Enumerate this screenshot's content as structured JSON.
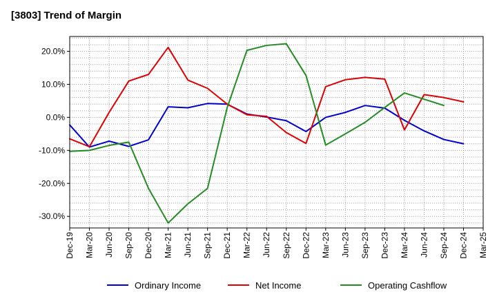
{
  "chart_data": {
    "type": "line",
    "title": "[3803]  Trend of Margin",
    "xlabel": "",
    "ylabel": "",
    "ylim": [
      -33.5,
      24.5
    ],
    "yticks": [
      20,
      10,
      0,
      -10,
      -20,
      -30
    ],
    "ytick_labels": [
      "20.0%",
      "10.0%",
      "0.0%",
      "-10.0%",
      "-20.0%",
      "-30.0%"
    ],
    "grid": true,
    "legend_position": "bottom",
    "categories": [
      "Dec-19",
      "Mar-20",
      "Jun-20",
      "Sep-20",
      "Dec-20",
      "Mar-21",
      "Jun-21",
      "Sep-21",
      "Dec-21",
      "Mar-22",
      "Jun-22",
      "Sep-22",
      "Dec-22",
      "Mar-23",
      "Jun-23",
      "Sep-23",
      "Dec-23",
      "Mar-24",
      "Jun-24",
      "Sep-24",
      "Dec-24",
      "Mar-25"
    ],
    "series": [
      {
        "name": "Ordinary Income",
        "color": "#0000cc",
        "values": [
          -2.3,
          -9.0,
          -7.2,
          -8.8,
          -6.8,
          3.2,
          2.9,
          4.2,
          4.0,
          1.0,
          0.1,
          -1.0,
          -4.3,
          0.0,
          1.5,
          3.6,
          2.8,
          -0.9,
          -4.1,
          -6.7,
          -8.0,
          null
        ]
      },
      {
        "name": "Net Income",
        "color": "#dd0000",
        "values": [
          -6.5,
          -8.9,
          1.5,
          11.0,
          13.0,
          21.2,
          11.3,
          8.8,
          4.0,
          0.8,
          0.3,
          -4.6,
          -7.9,
          9.3,
          11.4,
          12.1,
          11.6,
          -3.8,
          6.9,
          6.0,
          4.7,
          null
        ]
      },
      {
        "name": "Operating Cashflow",
        "color": "#228b22",
        "values": [
          -10.3,
          -10.0,
          -8.5,
          -7.5,
          -21.5,
          -32.0,
          -26.2,
          -21.5,
          3.0,
          20.3,
          21.8,
          22.3,
          12.7,
          -8.4,
          -5.0,
          -1.5,
          3.0,
          7.4,
          5.5,
          3.6,
          null,
          null
        ]
      }
    ]
  }
}
